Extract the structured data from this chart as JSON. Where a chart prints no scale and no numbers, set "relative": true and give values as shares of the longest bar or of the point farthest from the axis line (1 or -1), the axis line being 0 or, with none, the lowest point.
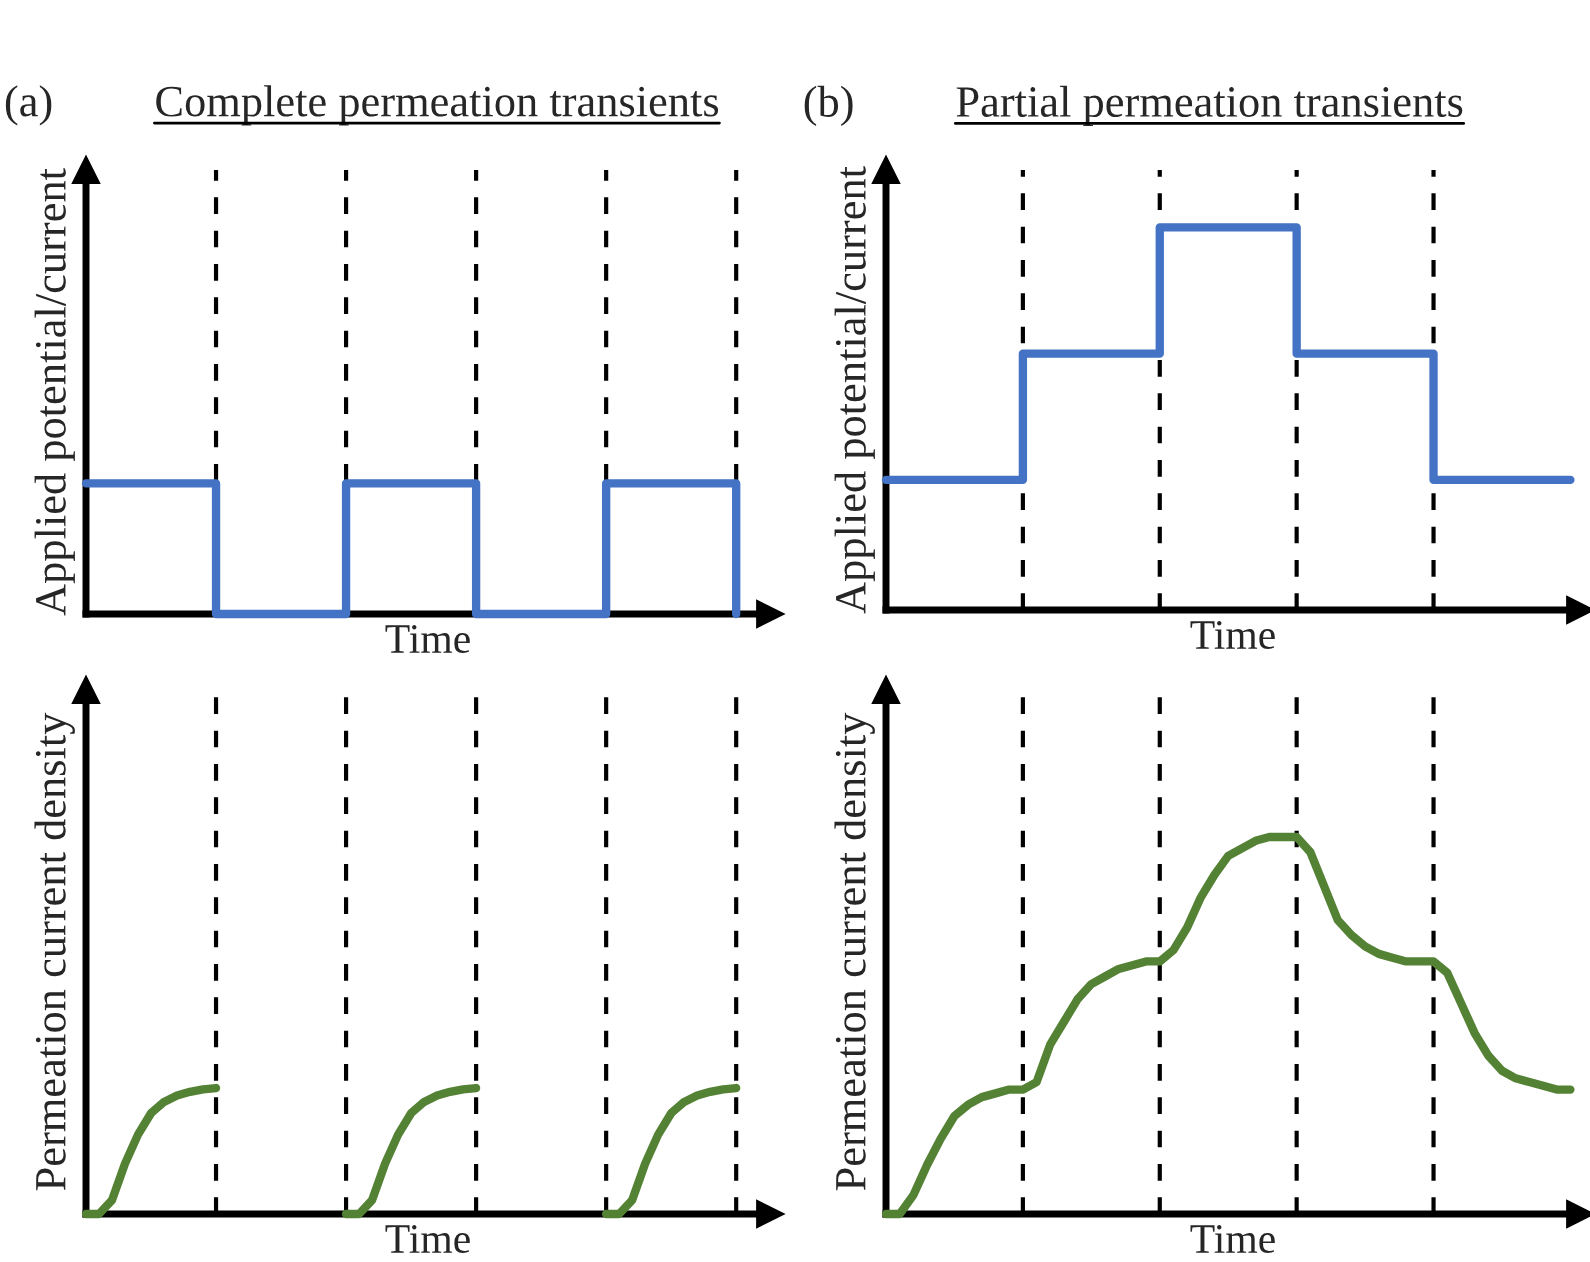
{
  "chart_data": [
    {
      "type": "step",
      "grid": "x",
      "title": "Complete permeation transients",
      "annotations": [
        "(a)"
      ],
      "ylabel": "Applied potential/current",
      "xlabel": "Time",
      "relative": true,
      "categories": [
        null,
        null,
        null,
        null,
        null,
        null
      ],
      "series": [
        {
          "color": "#4472c4",
          "values": [
            1,
            0,
            1,
            0,
            1,
            0
          ]
        }
      ]
    },
    {
      "type": "step",
      "grid": "x",
      "title": "Partial permeation transients",
      "annotations": [
        "(b)"
      ],
      "ylabel": "Applied potential/current",
      "xlabel": "Time",
      "relative": true,
      "categories": [
        null,
        null,
        null,
        null,
        null,
        null
      ],
      "series": [
        {
          "color": "#4472c4",
          "values": [
            0.34,
            0.67,
            1,
            0.67,
            0.34,
            0.34
          ]
        }
      ]
    },
    {
      "type": "line",
      "grid": "x",
      "ylabel": "Permeation current density",
      "xlabel": "Time",
      "relative": true,
      "categories": [
        null,
        null,
        null,
        null,
        null,
        null,
        null,
        null,
        null,
        null,
        null,
        null,
        null,
        null,
        null,
        null,
        null,
        null,
        null,
        null,
        null,
        null,
        null,
        null,
        null,
        null,
        null,
        null,
        null,
        null,
        null,
        null,
        null,
        null,
        null,
        null,
        null,
        null,
        null,
        null,
        null,
        null,
        null,
        null,
        null,
        null,
        null,
        null,
        null,
        null,
        null
      ],
      "series": [
        {
          "color": "#548235",
          "values": [
            0,
            0,
            0.11,
            0.4,
            0.63,
            0.8,
            0.89,
            0.94,
            0.97,
            0.99,
            1,
            null,
            null,
            null,
            null,
            null,
            null,
            null,
            null,
            null,
            null,
            null,
            null,
            null,
            null,
            null,
            null,
            null,
            null,
            null,
            null,
            null,
            null,
            null,
            null,
            null,
            null,
            null,
            null,
            null,
            null,
            null,
            null,
            null,
            null,
            null,
            null,
            null,
            null,
            null,
            null
          ]
        },
        {
          "color": "#548235",
          "values": [
            null,
            null,
            null,
            null,
            null,
            null,
            null,
            null,
            null,
            null,
            null,
            null,
            null,
            null,
            null,
            null,
            null,
            null,
            null,
            null,
            0,
            0,
            0.11,
            0.4,
            0.63,
            0.8,
            0.89,
            0.94,
            0.97,
            0.99,
            1,
            null,
            null,
            null,
            null,
            null,
            null,
            null,
            null,
            null,
            null,
            null,
            null,
            null,
            null,
            null,
            null,
            null,
            null,
            null,
            null
          ]
        },
        {
          "color": "#548235",
          "values": [
            null,
            null,
            null,
            null,
            null,
            null,
            null,
            null,
            null,
            null,
            null,
            null,
            null,
            null,
            null,
            null,
            null,
            null,
            null,
            null,
            null,
            null,
            null,
            null,
            null,
            null,
            null,
            null,
            null,
            null,
            null,
            null,
            null,
            null,
            null,
            null,
            null,
            null,
            null,
            null,
            0,
            0,
            0.11,
            0.4,
            0.63,
            0.8,
            0.89,
            0.94,
            0.97,
            0.99,
            1
          ]
        }
      ]
    },
    {
      "type": "line",
      "grid": "x",
      "ylabel": "Permeation current density",
      "xlabel": "Time",
      "relative": true,
      "categories": [
        null,
        null,
        null,
        null,
        null,
        null,
        null,
        null,
        null,
        null,
        null,
        null,
        null,
        null,
        null,
        null,
        null,
        null,
        null,
        null,
        null,
        null,
        null,
        null,
        null,
        null,
        null,
        null,
        null,
        null,
        null,
        null,
        null,
        null,
        null,
        null,
        null,
        null,
        null,
        null,
        null,
        null,
        null,
        null,
        null,
        null,
        null,
        null,
        null,
        null,
        null
      ],
      "series": [
        {
          "color": "#548235",
          "values": [
            0,
            0,
            0.05,
            0.13,
            0.2,
            0.26,
            0.29,
            0.31,
            0.32,
            0.33,
            0.33,
            0.35,
            0.45,
            0.51,
            0.57,
            0.61,
            0.63,
            0.65,
            0.66,
            0.67,
            0.67,
            0.7,
            0.76,
            0.84,
            0.9,
            0.95,
            0.97,
            0.99,
            1,
            1,
            1,
            0.96,
            0.87,
            0.78,
            0.74,
            0.71,
            0.69,
            0.68,
            0.67,
            0.67,
            0.67,
            0.64,
            0.56,
            0.48,
            0.42,
            0.38,
            0.36,
            0.35,
            0.34,
            0.33,
            0.33
          ]
        }
      ]
    }
  ]
}
